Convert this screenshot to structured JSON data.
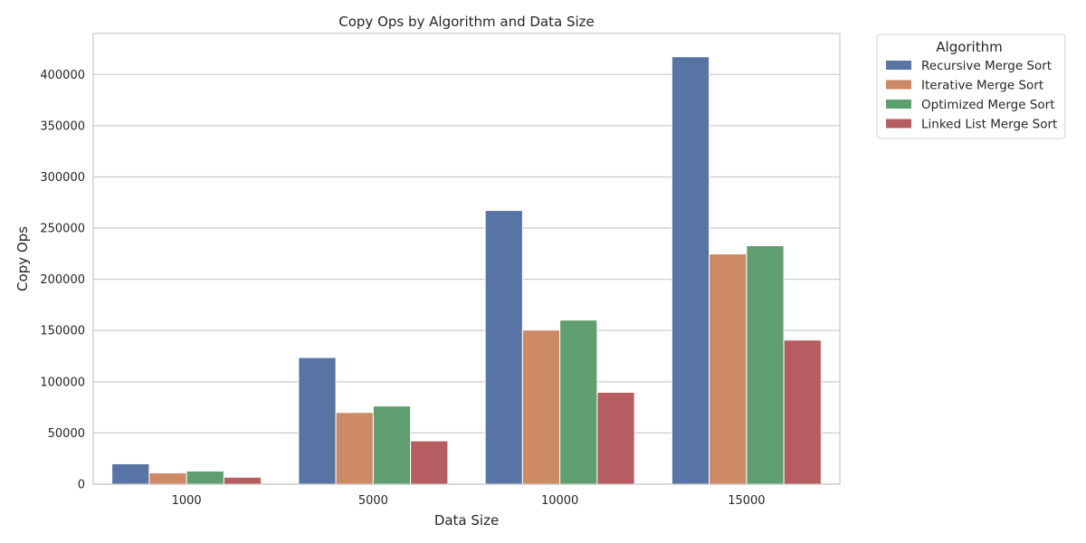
{
  "chart_data": {
    "type": "bar",
    "title": "Copy Ops by Algorithm and Data Size",
    "xlabel": "Data Size",
    "ylabel": "Copy Ops",
    "categories": [
      "1000",
      "5000",
      "10000",
      "15000"
    ],
    "ylim": [
      0,
      440000
    ],
    "yticks": [
      0,
      50000,
      100000,
      150000,
      200000,
      250000,
      300000,
      350000,
      400000
    ],
    "ytick_labels": [
      "0",
      "50000",
      "100000",
      "150000",
      "200000",
      "250000",
      "300000",
      "350000",
      "400000"
    ],
    "grid": "horizontal",
    "legend": {
      "title": "Algorithm",
      "placement": "outside top-right"
    },
    "series": [
      {
        "name": "Recursive Merge Sort",
        "color": "#5874a4",
        "values": [
          19900,
          123600,
          267200,
          417300
        ]
      },
      {
        "name": "Iterative Merge Sort",
        "color": "#cc8963",
        "values": [
          11000,
          70000,
          150500,
          224800
        ]
      },
      {
        "name": "Optimized Merge Sort",
        "color": "#5f9e6e",
        "values": [
          12800,
          76300,
          160200,
          232800
        ]
      },
      {
        "name": "Linked List Merge Sort",
        "color": "#b55d60",
        "values": [
          6800,
          42300,
          89700,
          140700
        ]
      }
    ]
  }
}
